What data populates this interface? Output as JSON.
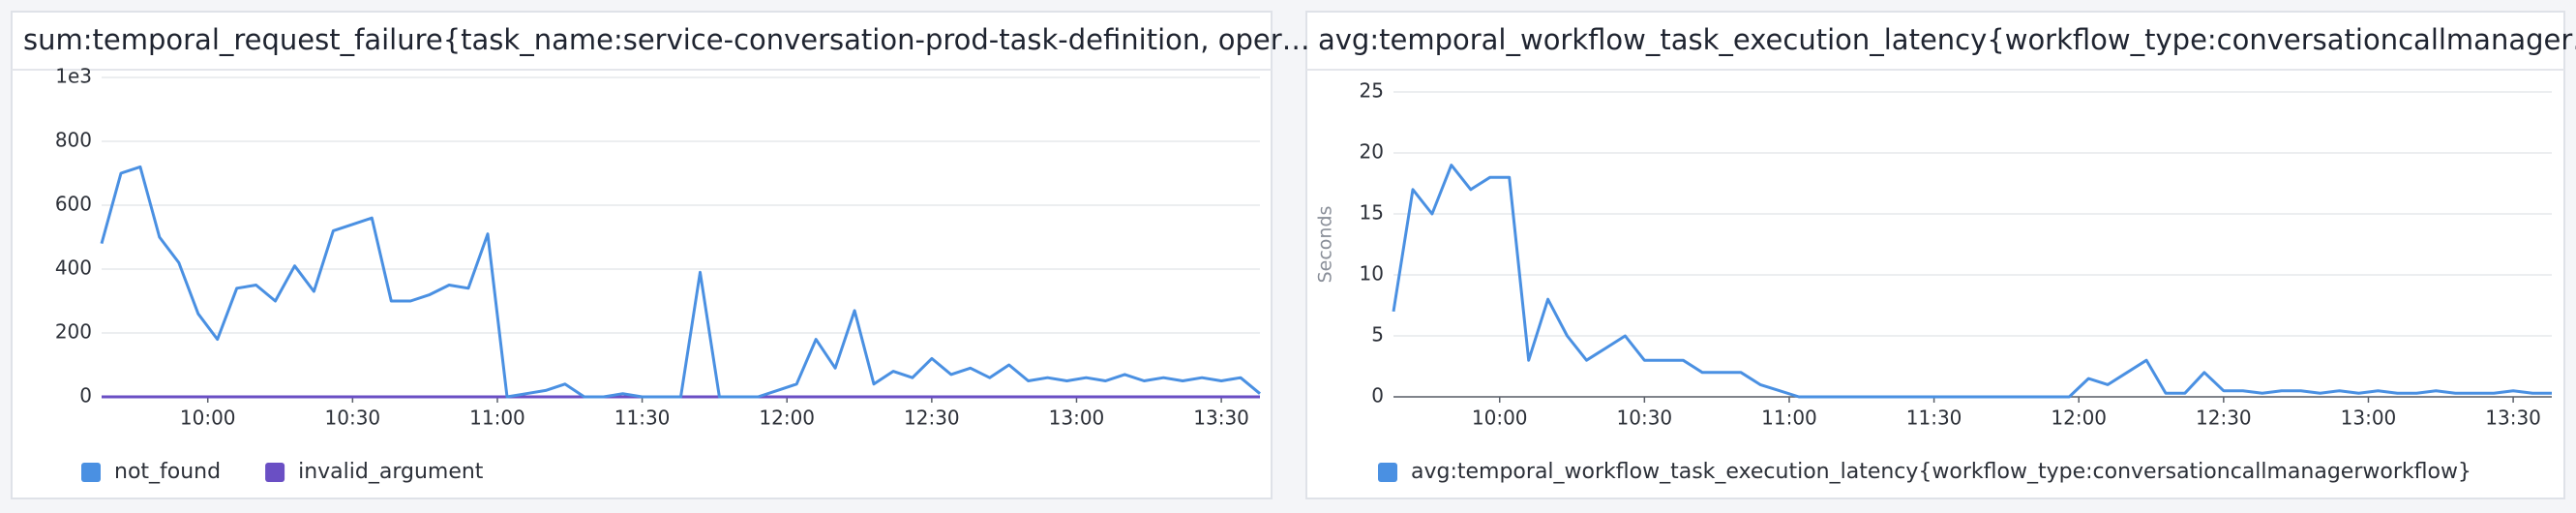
{
  "chart_data": [
    {
      "type": "line",
      "title": "sum:temporal_request_failure{task_name:service-conversation-prod-task-definition, oper…",
      "x": [
        "09:38",
        "09:42",
        "09:46",
        "09:50",
        "09:54",
        "09:58",
        "10:02",
        "10:06",
        "10:10",
        "10:14",
        "10:18",
        "10:22",
        "10:26",
        "10:30",
        "10:34",
        "10:38",
        "10:42",
        "10:46",
        "10:50",
        "10:54",
        "10:58",
        "11:02",
        "11:06",
        "11:10",
        "11:14",
        "11:18",
        "11:22",
        "11:26",
        "11:30",
        "11:34",
        "11:38",
        "11:42",
        "11:46",
        "11:50",
        "11:54",
        "11:58",
        "12:02",
        "12:06",
        "12:10",
        "12:14",
        "12:18",
        "12:22",
        "12:26",
        "12:30",
        "12:34",
        "12:38",
        "12:42",
        "12:46",
        "12:50",
        "12:54",
        "12:58",
        "13:02",
        "13:06",
        "13:10",
        "13:14",
        "13:18",
        "13:22",
        "13:26",
        "13:30",
        "13:34",
        "13:38"
      ],
      "series": [
        {
          "name": "not_found",
          "color": "#4a90e2",
          "values": [
            480,
            700,
            720,
            500,
            420,
            260,
            180,
            340,
            350,
            300,
            410,
            330,
            520,
            540,
            560,
            300,
            300,
            320,
            350,
            340,
            510,
            0,
            10,
            20,
            40,
            0,
            0,
            10,
            0,
            0,
            0,
            390,
            0,
            0,
            0,
            20,
            40,
            180,
            90,
            270,
            40,
            80,
            60,
            120,
            70,
            90,
            60,
            100,
            50,
            60,
            50,
            60,
            50,
            70,
            50,
            60,
            50,
            60,
            50,
            60,
            10
          ]
        },
        {
          "name": "invalid_argument",
          "color": "#6a4fc4",
          "values": [
            0,
            0,
            0,
            0,
            0,
            0,
            0,
            0,
            0,
            0,
            0,
            0,
            0,
            0,
            0,
            0,
            0,
            0,
            0,
            0,
            0,
            0,
            0,
            0,
            0,
            0,
            0,
            0,
            0,
            0,
            0,
            0,
            0,
            0,
            0,
            0,
            0,
            0,
            0,
            0,
            0,
            0,
            0,
            0,
            0,
            0,
            0,
            0,
            0,
            0,
            0,
            0,
            0,
            0,
            0,
            0,
            0,
            0,
            0,
            0,
            0
          ]
        }
      ],
      "xlim": [
        "09:38",
        "13:38"
      ],
      "xticks": [
        "10:00",
        "10:30",
        "11:00",
        "11:30",
        "12:00",
        "12:30",
        "13:00",
        "13:30"
      ],
      "ylim": [
        0,
        1000
      ],
      "yticks": [
        0,
        200,
        400,
        600,
        800,
        {
          "value": 1000,
          "label": "1e3"
        }
      ],
      "grid": true
    },
    {
      "type": "line",
      "title": "avg:temporal_workflow_task_execution_latency{workflow_type:conversationcallmanager…",
      "y_label": "Seconds",
      "x": [
        "09:38",
        "09:42",
        "09:46",
        "09:50",
        "09:54",
        "09:58",
        "10:02",
        "10:06",
        "10:10",
        "10:14",
        "10:18",
        "10:22",
        "10:26",
        "10:30",
        "10:34",
        "10:38",
        "10:42",
        "10:46",
        "10:50",
        "10:54",
        "10:58",
        "11:02",
        "11:06",
        "11:10",
        "11:14",
        "11:18",
        "11:22",
        "11:26",
        "11:30",
        "11:34",
        "11:38",
        "11:42",
        "11:46",
        "11:50",
        "11:54",
        "11:58",
        "12:02",
        "12:06",
        "12:10",
        "12:14",
        "12:18",
        "12:22",
        "12:26",
        "12:30",
        "12:34",
        "12:38",
        "12:42",
        "12:46",
        "12:50",
        "12:54",
        "12:58",
        "13:02",
        "13:06",
        "13:10",
        "13:14",
        "13:18",
        "13:22",
        "13:26",
        "13:30",
        "13:34",
        "13:38"
      ],
      "series": [
        {
          "name": "avg:temporal_workflow_task_execution_latency{workflow_type:conversationcallmanagerworkflow}",
          "color": "#4a90e2",
          "values": [
            7,
            17,
            15,
            19,
            17,
            18,
            18,
            3,
            8,
            5,
            3,
            4,
            5,
            3,
            3,
            3,
            2,
            2,
            2,
            1,
            0.5,
            0,
            0,
            0,
            0,
            0,
            0,
            0,
            0,
            0,
            0,
            0,
            0,
            0,
            0,
            0,
            1.5,
            1,
            2,
            3,
            0.3,
            0.3,
            2,
            0.5,
            0.5,
            0.3,
            0.5,
            0.5,
            0.3,
            0.5,
            0.3,
            0.5,
            0.3,
            0.3,
            0.5,
            0.3,
            0.3,
            0.3,
            0.5,
            0.3,
            0.3
          ]
        }
      ],
      "xlim": [
        "09:38",
        "13:38"
      ],
      "xticks": [
        "10:00",
        "10:30",
        "11:00",
        "11:30",
        "12:00",
        "12:30",
        "13:00",
        "13:30"
      ],
      "ylim": [
        0,
        25
      ],
      "yticks": [
        0,
        5,
        10,
        15,
        20,
        25
      ],
      "grid": true
    }
  ]
}
